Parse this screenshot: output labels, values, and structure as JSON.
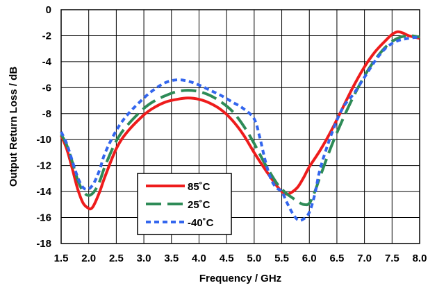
{
  "chart_data": {
    "type": "line",
    "xlabel": "Frequency / GHz",
    "ylabel": "Output Return Loss / dB",
    "xlim": [
      1.5,
      8.0
    ],
    "ylim": [
      -18,
      0
    ],
    "xticks": [
      "1.5",
      "2.0",
      "2.5",
      "3.0",
      "3.5",
      "4.0",
      "4.5",
      "5.0",
      "5.5",
      "6.0",
      "6.5",
      "7.0",
      "7.5",
      "8.0"
    ],
    "yticks": [
      "0",
      "-2",
      "-4",
      "-6",
      "-8",
      "-10",
      "-12",
      "-14",
      "-16",
      "-18"
    ],
    "grid": true,
    "legend_position": "bottom-left",
    "series": [
      {
        "name": "85˚C",
        "color": "#ee1c1c",
        "style": "solid",
        "x": [
          1.5,
          1.6,
          1.7,
          1.8,
          1.9,
          2.0,
          2.05,
          2.1,
          2.2,
          2.3,
          2.5,
          2.7,
          3.0,
          3.2,
          3.4,
          3.6,
          3.8,
          4.0,
          4.2,
          4.4,
          4.6,
          4.8,
          5.0,
          5.2,
          5.4,
          5.5,
          5.6,
          5.7,
          5.8,
          5.9,
          6.0,
          6.2,
          6.4,
          6.6,
          6.8,
          7.0,
          7.2,
          7.4,
          7.5,
          7.6,
          7.7,
          7.8,
          8.0
        ],
        "y": [
          -9.7,
          -10.7,
          -12.2,
          -13.8,
          -14.9,
          -15.3,
          -15.3,
          -15.0,
          -14.0,
          -12.8,
          -10.7,
          -9.4,
          -8.1,
          -7.5,
          -7.1,
          -6.9,
          -6.8,
          -6.9,
          -7.2,
          -7.7,
          -8.5,
          -9.6,
          -11.0,
          -12.3,
          -13.5,
          -14.0,
          -14.2,
          -14.0,
          -13.6,
          -12.9,
          -12.1,
          -10.8,
          -9.3,
          -7.6,
          -5.9,
          -4.4,
          -3.2,
          -2.3,
          -1.9,
          -1.7,
          -1.8,
          -2.0,
          -2.2
        ]
      },
      {
        "name": "25˚C",
        "color": "#2e8b57",
        "style": "longdash",
        "x": [
          1.5,
          1.6,
          1.7,
          1.8,
          1.9,
          2.0,
          2.1,
          2.2,
          2.3,
          2.5,
          2.7,
          3.0,
          3.2,
          3.4,
          3.6,
          3.8,
          4.0,
          4.2,
          4.4,
          4.6,
          4.8,
          5.0,
          5.2,
          5.4,
          5.5,
          5.6,
          5.7,
          5.8,
          5.9,
          6.0,
          6.1,
          6.2,
          6.4,
          6.6,
          6.8,
          7.0,
          7.2,
          7.4,
          7.6,
          7.8,
          8.0
        ],
        "y": [
          -9.6,
          -10.4,
          -11.7,
          -13.1,
          -14.0,
          -14.3,
          -14.0,
          -13.2,
          -12.0,
          -10.1,
          -8.9,
          -7.6,
          -7.0,
          -6.6,
          -6.3,
          -6.2,
          -6.3,
          -6.6,
          -7.1,
          -7.8,
          -8.9,
          -10.3,
          -11.9,
          -13.3,
          -13.8,
          -14.2,
          -14.5,
          -14.8,
          -15.0,
          -14.9,
          -14.0,
          -12.8,
          -10.5,
          -8.5,
          -6.7,
          -5.1,
          -3.8,
          -2.8,
          -2.2,
          -2.0,
          -2.1
        ]
      },
      {
        "name": "-40˚C",
        "color": "#3366ee",
        "style": "shortdash",
        "x": [
          1.5,
          1.6,
          1.7,
          1.8,
          1.9,
          2.0,
          2.1,
          2.2,
          2.3,
          2.5,
          2.7,
          3.0,
          3.2,
          3.4,
          3.6,
          3.8,
          4.0,
          4.2,
          4.4,
          4.6,
          4.8,
          5.0,
          5.1,
          5.2,
          5.3,
          5.4,
          5.5,
          5.6,
          5.7,
          5.8,
          5.9,
          6.0,
          6.1,
          6.2,
          6.4,
          6.6,
          6.8,
          7.0,
          7.2,
          7.4,
          7.6,
          7.8,
          8.0
        ],
        "y": [
          -9.4,
          -10.3,
          -11.6,
          -12.9,
          -13.7,
          -13.8,
          -13.3,
          -12.3,
          -11.0,
          -9.3,
          -8.1,
          -6.8,
          -6.1,
          -5.6,
          -5.4,
          -5.5,
          -5.8,
          -6.2,
          -6.6,
          -7.1,
          -7.6,
          -8.4,
          -9.8,
          -11.6,
          -13.0,
          -13.7,
          -14.0,
          -14.9,
          -15.7,
          -16.2,
          -16.1,
          -15.6,
          -14.2,
          -12.2,
          -9.6,
          -7.6,
          -6.5,
          -5.2,
          -3.9,
          -2.9,
          -2.4,
          -2.2,
          -2.1
        ]
      }
    ]
  }
}
